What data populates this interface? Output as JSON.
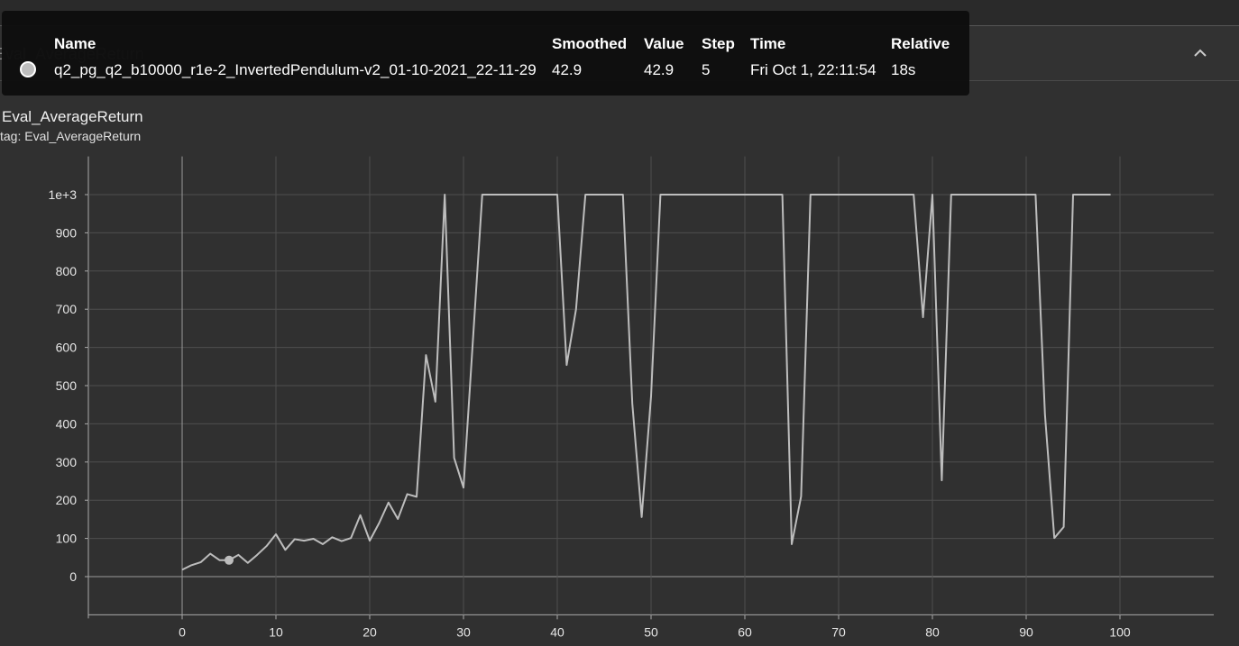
{
  "chart_data": {
    "type": "line",
    "title": "Eval_AverageReturn",
    "subtitle": "tag: Eval_AverageReturn",
    "x": [
      0,
      1,
      2,
      3,
      4,
      5,
      6,
      7,
      8,
      9,
      10,
      11,
      12,
      13,
      14,
      15,
      16,
      17,
      18,
      19,
      20,
      21,
      22,
      23,
      24,
      25,
      26,
      27,
      28,
      29,
      30,
      31,
      32,
      33,
      34,
      35,
      36,
      37,
      38,
      39,
      40,
      41,
      42,
      43,
      44,
      45,
      46,
      47,
      48,
      49,
      50,
      51,
      52,
      53,
      54,
      55,
      56,
      57,
      58,
      59,
      60,
      61,
      62,
      63,
      64,
      65,
      66,
      67,
      68,
      69,
      70,
      71,
      72,
      73,
      74,
      75,
      76,
      77,
      78,
      79,
      80,
      81,
      82,
      83,
      84,
      85,
      86,
      87,
      88,
      89,
      90,
      91,
      92,
      93,
      94,
      95,
      96,
      97,
      98,
      99
    ],
    "series": [
      {
        "name": "q2_pg_q2_b10000_r1e-2_InvertedPendulum-v2_01-10-2021_22-11-29",
        "color": "#bdbdbd",
        "values": [
          18,
          30,
          38,
          60,
          43,
          42.9,
          57,
          36,
          57,
          80,
          111,
          70,
          98,
          94,
          99,
          85,
          103,
          93,
          101,
          161,
          94,
          140,
          194,
          151,
          216,
          209,
          580,
          458,
          1000,
          311,
          233,
          617,
          1000,
          1000,
          1000,
          1000,
          1000,
          1000,
          1000,
          1000,
          1000,
          554,
          700,
          1000,
          1000,
          1000,
          1000,
          1000,
          453,
          156,
          472,
          1000,
          1000,
          1000,
          1000,
          1000,
          1000,
          1000,
          1000,
          1000,
          1000,
          1000,
          1000,
          1000,
          1000,
          85,
          210,
          1000,
          1000,
          1000,
          1000,
          1000,
          1000,
          1000,
          1000,
          1000,
          1000,
          1000,
          1000,
          679,
          1000,
          252,
          1000,
          1000,
          1000,
          1000,
          1000,
          1000,
          1000,
          1000,
          1000,
          1000,
          425,
          101,
          130,
          1000,
          1000,
          1000,
          1000,
          1000
        ]
      }
    ],
    "xlim": [
      -10,
      110
    ],
    "xticks": [
      0,
      10,
      20,
      30,
      40,
      50,
      60,
      70,
      80,
      90,
      100
    ],
    "ylim": [
      -100,
      1100
    ],
    "yticks": [
      0,
      100,
      200,
      300,
      400,
      500,
      600,
      700,
      800,
      900,
      {
        "value": 1000,
        "label": "1e+3"
      }
    ],
    "grid": true,
    "tooltip": {
      "headers": [
        "Name",
        "Smoothed",
        "Value",
        "Step",
        "Time",
        "Relative"
      ],
      "row": [
        "q2_pg_q2_b10000_r1e-2_InvertedPendulum-v2_01-10-2021_22-11-29",
        "42.9",
        "42.9",
        "5",
        "Fri Oct 1, 22:11:54",
        "18s"
      ],
      "point": 5
    }
  }
}
